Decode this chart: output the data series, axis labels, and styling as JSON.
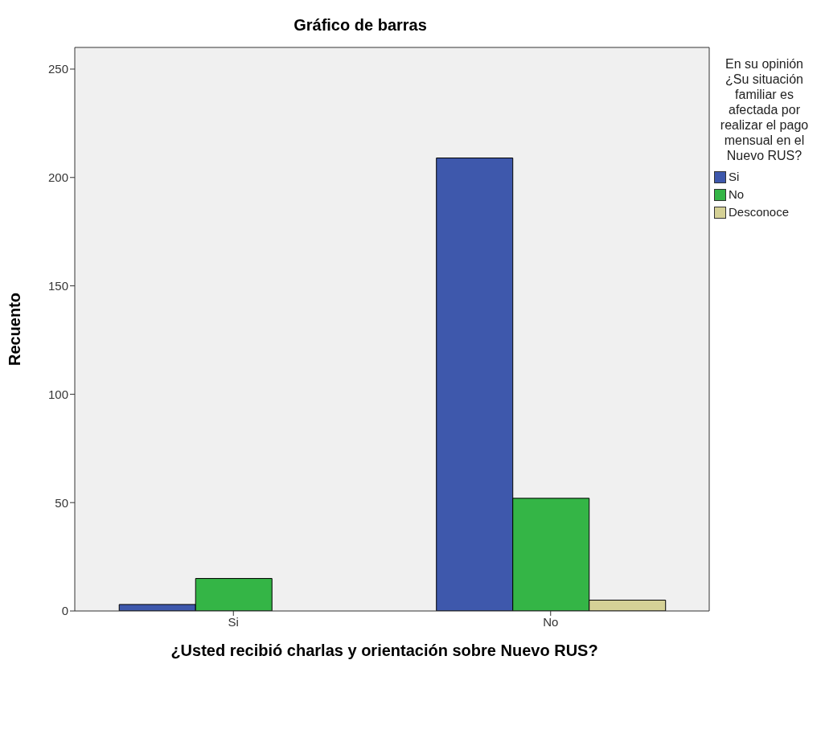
{
  "chart_data": {
    "type": "bar",
    "title": "Gráfico de barras",
    "xlabel": "¿Usted recibió charlas y orientación sobre Nuevo RUS?",
    "ylabel": "Recuento",
    "legend_title": "En su opinión ¿Su situación familiar es afectada por realizar el pago mensual en el Nuevo RUS?",
    "categories": [
      "Si",
      "No"
    ],
    "series": [
      {
        "name": "Si",
        "color": "#3e58ac",
        "values": [
          3,
          209
        ]
      },
      {
        "name": "No",
        "color": "#34b546",
        "values": [
          15,
          52
        ]
      },
      {
        "name": "Desconoce",
        "color": "#d5d196",
        "values": [
          null,
          5
        ]
      }
    ],
    "ylim": [
      0,
      260
    ],
    "yticks": [
      0,
      50,
      100,
      150,
      200,
      250
    ],
    "grid": false,
    "legend": "right"
  }
}
